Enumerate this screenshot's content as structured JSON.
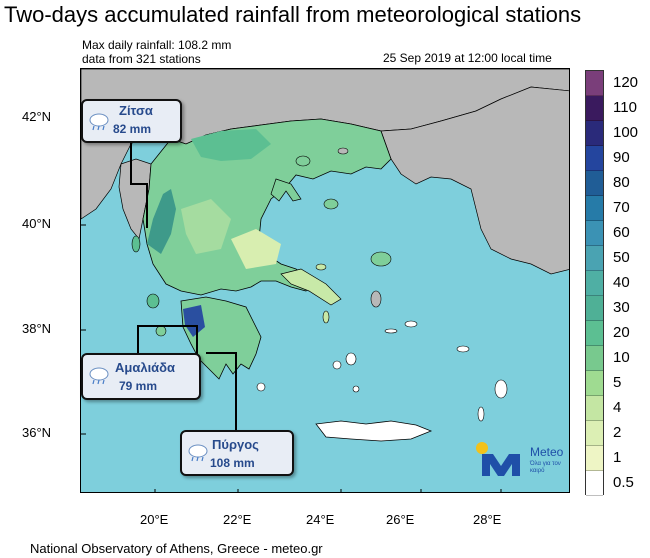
{
  "title": "Two-days accumulated rainfall from meteorological stations",
  "subtitle_left": [
    "Max daily rainfall: 108.2 mm",
    "data from 321 stations"
  ],
  "subtitle_right": "25 Sep 2019 at 12:00 local time",
  "latitude_labels": [
    "42°N",
    "40°N",
    "38°N",
    "36°N"
  ],
  "longitude_labels": [
    "20°E",
    "22°E",
    "24°E",
    "26°E",
    "28°E"
  ],
  "legend": {
    "levels": [
      "120",
      "110",
      "100",
      "90",
      "80",
      "70",
      "60",
      "50",
      "40",
      "30",
      "20",
      "10",
      "5",
      "4",
      "2",
      "1",
      "0.5"
    ],
    "colors": [
      "#7a3e7a",
      "#3a1a5e",
      "#2a2a7a",
      "#24459e",
      "#205d96",
      "#267ba8",
      "#3b92b4",
      "#4aa3b2",
      "#4fafa4",
      "#4fb096",
      "#5cbf92",
      "#78c98e",
      "#9fdb91",
      "#c4e6a3",
      "#dcefb4",
      "#eef5c5",
      "#ffffff"
    ]
  },
  "callouts": [
    {
      "name": "Ζίτσα",
      "value": "82 mm"
    },
    {
      "name": "Αμαλιάδα",
      "value": "79 mm"
    },
    {
      "name": "Πύργος",
      "value": "108 mm"
    }
  ],
  "logo": {
    "name": "Meteo",
    "tagline": "Όλα για τον καιρό"
  },
  "footer": "National Observatory of Athens, Greece - meteo.gr",
  "colors": {
    "sea": "#7ecfdc",
    "land_outside": "#b8b8b8",
    "border": "#000000"
  }
}
